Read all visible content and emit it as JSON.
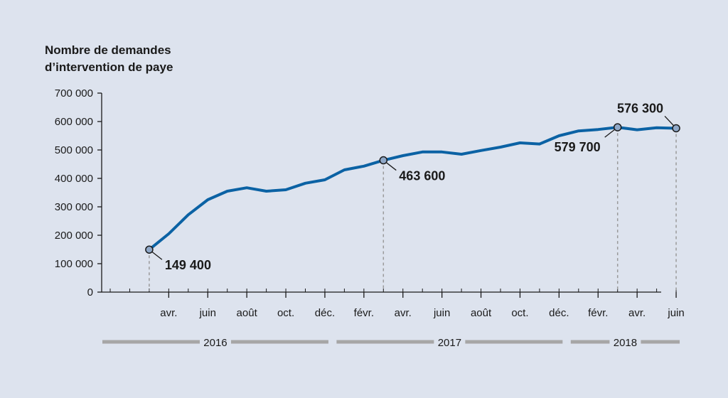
{
  "colors": {
    "background": "#dde3ee",
    "line": "#0b62a4",
    "marker": "#8fa8c8",
    "year_bar": "#a6a6a6",
    "guide": "#9a9a9a"
  },
  "chart_data": {
    "type": "line",
    "ylabel_lines": [
      "Nombre de demandes",
      "d’intervention de paye"
    ],
    "ylim": [
      0,
      700000
    ],
    "yticks": [
      {
        "value": 0,
        "label": "0"
      },
      {
        "value": 100000,
        "label": "100 000"
      },
      {
        "value": 200000,
        "label": "200 000"
      },
      {
        "value": 300000,
        "label": "300 000"
      },
      {
        "value": 400000,
        "label": "400 000"
      },
      {
        "value": 500000,
        "label": "500 000"
      },
      {
        "value": 600000,
        "label": "600 000"
      },
      {
        "value": 700000,
        "label": "700 000"
      }
    ],
    "x_start": "2016-01",
    "x_end": "2018-06",
    "xticks": [
      {
        "month": "2016-04",
        "label": "avr."
      },
      {
        "month": "2016-06",
        "label": "juin"
      },
      {
        "month": "2016-08",
        "label": "août"
      },
      {
        "month": "2016-10",
        "label": "oct."
      },
      {
        "month": "2016-12",
        "label": "déc."
      },
      {
        "month": "2017-02",
        "label": "févr."
      },
      {
        "month": "2017-04",
        "label": "avr."
      },
      {
        "month": "2017-06",
        "label": "juin"
      },
      {
        "month": "2017-08",
        "label": "août"
      },
      {
        "month": "2017-10",
        "label": "oct."
      },
      {
        "month": "2017-12",
        "label": "déc."
      },
      {
        "month": "2018-02",
        "label": "févr."
      },
      {
        "month": "2018-04",
        "label": "avr."
      },
      {
        "month": "2018-06",
        "label": "juin"
      }
    ],
    "years": [
      {
        "label": "2016",
        "from": "2016-01",
        "to": "2016-12"
      },
      {
        "label": "2017",
        "from": "2017-01",
        "to": "2017-12"
      },
      {
        "label": "2018",
        "from": "2018-01",
        "to": "2018-06"
      }
    ],
    "grid": false,
    "series": [
      {
        "points": [
          {
            "x": "2016-03",
            "y": 149400
          },
          {
            "x": "2016-04",
            "y": 205000
          },
          {
            "x": "2016-05",
            "y": 272000
          },
          {
            "x": "2016-06",
            "y": 325000
          },
          {
            "x": "2016-07",
            "y": 355000
          },
          {
            "x": "2016-08",
            "y": 367000
          },
          {
            "x": "2016-09",
            "y": 355000
          },
          {
            "x": "2016-10",
            "y": 360000
          },
          {
            "x": "2016-11",
            "y": 383000
          },
          {
            "x": "2016-12",
            "y": 395000
          },
          {
            "x": "2017-01",
            "y": 430000
          },
          {
            "x": "2017-02",
            "y": 443000
          },
          {
            "x": "2017-03",
            "y": 463600
          },
          {
            "x": "2017-04",
            "y": 480000
          },
          {
            "x": "2017-05",
            "y": 493000
          },
          {
            "x": "2017-06",
            "y": 493000
          },
          {
            "x": "2017-07",
            "y": 485000
          },
          {
            "x": "2017-08",
            "y": 498000
          },
          {
            "x": "2017-09",
            "y": 510000
          },
          {
            "x": "2017-10",
            "y": 525000
          },
          {
            "x": "2017-11",
            "y": 521000
          },
          {
            "x": "2017-12",
            "y": 550000
          },
          {
            "x": "2018-01",
            "y": 567000
          },
          {
            "x": "2018-02",
            "y": 572000
          },
          {
            "x": "2018-03",
            "y": 579700
          },
          {
            "x": "2018-04",
            "y": 571000
          },
          {
            "x": "2018-05",
            "y": 578000
          },
          {
            "x": "2018-06",
            "y": 576300
          }
        ]
      }
    ],
    "annotations": [
      {
        "x": "2016-03",
        "y": 149400,
        "label": "149 400",
        "side": "below-right"
      },
      {
        "x": "2017-03",
        "y": 463600,
        "label": "463 600",
        "side": "below-right"
      },
      {
        "x": "2018-03",
        "y": 579700,
        "label": "579 700",
        "side": "below-left"
      },
      {
        "x": "2018-06",
        "y": 576300,
        "label": "576 300",
        "side": "above-left"
      }
    ]
  }
}
